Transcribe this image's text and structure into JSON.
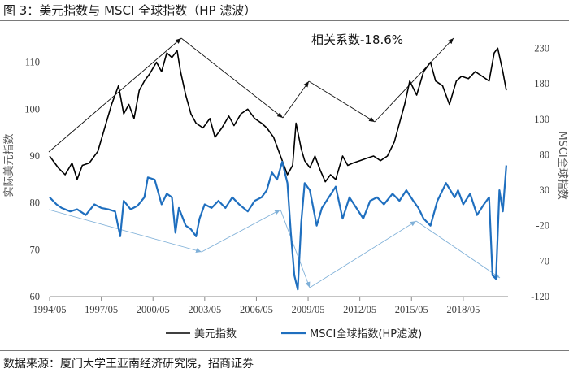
{
  "figure": {
    "title": "图 3：美元指数与 MSCI 全球指数（HP 滤波）",
    "source": "数据来源：厦门大学王亚南经济研究院，招商证券"
  },
  "chart_data": {
    "type": "line",
    "x_tick_labels": [
      "1994/05",
      "1997/05",
      "2000/05",
      "2003/05",
      "2006/05",
      "2009/05",
      "2012/05",
      "2015/05",
      "2018/05"
    ],
    "left_axis": {
      "label": "实际美元指数",
      "ylim": [
        60,
        116
      ],
      "ticks": [
        60,
        70,
        80,
        90,
        100,
        110
      ]
    },
    "right_axis": {
      "label": "MSCI全球指数",
      "ylim": [
        -120,
        250
      ],
      "ticks": [
        -120,
        -70,
        -20,
        30,
        80,
        130,
        180,
        230
      ]
    },
    "annotation": "相关系数-18.6%",
    "legend": {
      "position": "bottom"
    },
    "series": [
      {
        "name": "美元指数",
        "axis": "left",
        "color": "#000000",
        "x": [
          1994.4,
          1994.9,
          1995.3,
          1995.7,
          1996.0,
          1996.3,
          1996.7,
          1997.2,
          1997.6,
          1998.0,
          1998.4,
          1998.7,
          1999.0,
          1999.3,
          1999.6,
          1999.9,
          2000.2,
          2000.6,
          2000.9,
          2001.2,
          2001.5,
          2001.8,
          2002.0,
          2002.3,
          2002.6,
          2002.9,
          2003.3,
          2003.7,
          2004.0,
          2004.4,
          2004.8,
          2005.1,
          2005.5,
          2005.9,
          2006.3,
          2006.7,
          2007.0,
          2007.4,
          2007.8,
          2008.2,
          2008.5,
          2008.7,
          2009.0,
          2009.2,
          2009.5,
          2009.8,
          2010.1,
          2010.4,
          2010.7,
          2011.0,
          2011.4,
          2011.7,
          2012.0,
          2012.4,
          2012.8,
          2013.2,
          2013.6,
          2014.0,
          2014.4,
          2014.7,
          2015.0,
          2015.3,
          2015.7,
          2016.1,
          2016.5,
          2016.8,
          2017.2,
          2017.6,
          2018.0,
          2018.3,
          2018.7,
          2019.1,
          2019.5,
          2019.9,
          2020.2,
          2020.4,
          2020.7,
          2020.9
        ],
        "y": [
          90,
          87.5,
          86,
          88.5,
          85,
          88,
          88.5,
          91,
          96,
          101,
          105,
          99,
          101,
          98,
          104,
          106,
          107.5,
          110,
          108,
          112,
          111,
          112.5,
          108,
          103,
          99,
          97,
          96,
          98,
          94,
          96,
          98.5,
          96.5,
          99,
          100,
          98,
          97,
          96,
          94,
          90,
          86,
          88,
          97,
          91.5,
          89,
          87.5,
          90,
          87,
          84.5,
          86,
          85,
          90,
          88,
          88.5,
          89,
          89.5,
          90,
          89,
          90,
          93,
          97,
          101,
          106,
          103,
          108,
          110,
          106,
          105,
          101,
          106,
          107,
          106.5,
          108,
          107,
          106,
          112,
          113,
          108,
          104
        ]
      },
      {
        "name": "MSCI全球指数(HP滤波)",
        "axis": "right",
        "color": "#1f6fbf",
        "x": [
          1994.4,
          1994.8,
          1995.1,
          1995.6,
          1996.0,
          1996.5,
          1997.0,
          1997.4,
          1997.8,
          1998.2,
          1998.5,
          1998.7,
          1999.1,
          1999.5,
          1999.9,
          2000.1,
          2000.5,
          2000.9,
          2001.2,
          2001.5,
          2001.7,
          2001.9,
          2002.3,
          2002.6,
          2002.9,
          2003.1,
          2003.4,
          2003.8,
          2004.2,
          2004.6,
          2005.0,
          2005.4,
          2005.9,
          2006.3,
          2006.7,
          2007.0,
          2007.3,
          2007.6,
          2007.9,
          2008.2,
          2008.4,
          2008.6,
          2008.8,
          2009.0,
          2009.2,
          2009.5,
          2009.9,
          2010.2,
          2010.6,
          2011.0,
          2011.4,
          2011.8,
          2012.2,
          2012.6,
          2013.0,
          2013.4,
          2013.8,
          2014.3,
          2014.7,
          2015.1,
          2015.5,
          2015.8,
          2016.1,
          2016.5,
          2016.9,
          2017.4,
          2017.9,
          2018.1,
          2018.4,
          2018.8,
          2019.2,
          2019.6,
          2019.9,
          2020.1,
          2020.3,
          2020.5,
          2020.7,
          2020.9
        ],
        "y": [
          20,
          10,
          5,
          0,
          3,
          -5,
          10,
          5,
          3,
          0,
          -35,
          15,
          3,
          8,
          20,
          48,
          45,
          10,
          25,
          20,
          -30,
          5,
          -20,
          -25,
          -35,
          -10,
          10,
          5,
          15,
          5,
          20,
          10,
          0,
          15,
          20,
          30,
          55,
          45,
          70,
          40,
          -30,
          -90,
          -110,
          -15,
          40,
          30,
          -20,
          5,
          20,
          35,
          -10,
          20,
          5,
          -10,
          15,
          20,
          10,
          25,
          15,
          30,
          15,
          5,
          -10,
          -20,
          15,
          40,
          20,
          30,
          10,
          25,
          -5,
          10,
          20,
          -90,
          -95,
          30,
          0,
          65
        ]
      }
    ]
  }
}
